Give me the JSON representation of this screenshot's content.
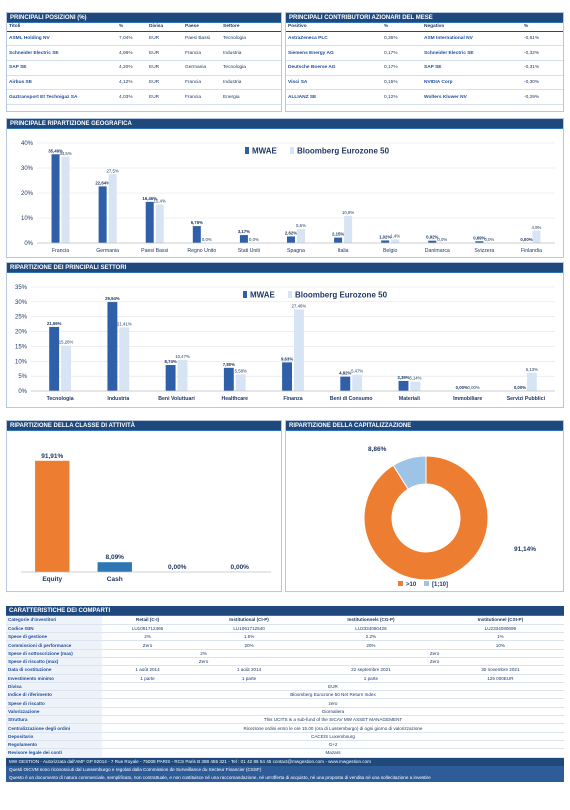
{
  "positions": {
    "title": "PRINCIPALI POSIZIONI (%)",
    "headers": [
      "Titoli",
      "%",
      "Divisa",
      "Paese",
      "Settore"
    ],
    "rows": [
      [
        "ASML Holding NV",
        "7,04%",
        "EUR",
        "Paesi Bassi",
        "Tecnologia"
      ],
      [
        "Schneider Electric SE",
        "4,96%",
        "EUR",
        "Francia",
        "Industria"
      ],
      [
        "SAP SE",
        "4,20%",
        "EUR",
        "Germania",
        "Tecnologia"
      ],
      [
        "Airbus SE",
        "4,12%",
        "EUR",
        "Francia",
        "Industria"
      ],
      [
        "Gaztransport Et Technigaz SA",
        "4,03%",
        "EUR",
        "Francia",
        "Energia"
      ]
    ]
  },
  "contributors": {
    "title": "PRINCIPALI CONTRIBUTORI AZIONARI  DEL MESE",
    "headers": [
      "Positivo",
      "%",
      "Negativo",
      "%"
    ],
    "rows": [
      [
        "AstraZeneca PLC",
        "0,36%",
        "ASM International NV",
        "-0,61%"
      ],
      [
        "Siemens Energy AG",
        "0,17%",
        "Schneider Electric SE",
        "-0,32%"
      ],
      [
        "Deutsche Boerse AG",
        "0,17%",
        "SAP SE",
        "-0,31%"
      ],
      [
        "Vinci SA",
        "0,15%",
        "NVIDIA Corp",
        "-0,30%"
      ],
      [
        "ALLIANZ SE",
        "0,12%",
        "Wolters Kluwer NV",
        "-0,29%"
      ]
    ]
  },
  "geo_title": "PRINCIPALE RIPARTIZIONE GEOGRAFICA",
  "sector_title": "RIPARTIZIONE DEI PRINCIPALI SETTORI",
  "asset_title": "RIPARTIZIONE DELLA CLASSE DI ATTIVITÀ",
  "cap_title": "RIPARTIZIONE DELLA CAPITALIZZAZIONE",
  "chart_data": [
    {
      "type": "bar",
      "categories": [
        "Francia",
        "Germania",
        "Paesi Bassi",
        "Regno Unito",
        "Stati Uniti",
        "Spagna",
        "Italia",
        "Belgio",
        "Danimarca",
        "Svizzera",
        "Finlandia"
      ],
      "series": [
        {
          "name": "MWAE",
          "values": [
            35.49,
            22.64,
            16.46,
            6.76,
            3.17,
            2.62,
            2.15,
            1.02,
            0.92,
            0.69,
            0.0
          ],
          "labels": [
            "35,49%",
            "22,64%",
            "16,46%",
            "6,76%",
            "3,17%",
            "2,62%",
            "2,15%",
            "1,02%",
            "0,92%",
            "0,69%",
            "0,00%"
          ]
        },
        {
          "name": "Bloomberg Eurozone 50",
          "values": [
            34.5,
            27.5,
            15.4,
            0.0,
            0.0,
            5.6,
            10.8,
            1.4,
            0.0,
            0.0,
            4.9
          ],
          "labels": [
            "34,5%",
            "27,5%",
            "15,4%",
            "0,0%",
            "0,0%",
            "5,6%",
            "10,8%",
            "1,4%",
            "0,0%",
            "0,0%",
            "4,9%"
          ]
        }
      ],
      "ylim": [
        0,
        40
      ],
      "yticks": [
        "0%",
        "10%",
        "20%",
        "30%",
        "40%"
      ],
      "legend": "top-right"
    },
    {
      "type": "bar",
      "categories": [
        "Tecnologia",
        "Industria",
        "Beni Voluttuari",
        "Healthcare",
        "Finanza",
        "Beni di Consumo",
        "Materiali",
        "Immobiliare",
        "Servizi Pubblici"
      ],
      "series": [
        {
          "name": "MWAE",
          "values": [
            21.56,
            29.94,
            8.74,
            7.8,
            9.63,
            4.82,
            3.39,
            0.0,
            0.0
          ],
          "labels": [
            "21,56%",
            "29,94%",
            "8,74%",
            "7,80%",
            "9,63%",
            "4,82%",
            "3,39%",
            "0,00%",
            "0,00%"
          ]
        },
        {
          "name": "Bloomberg Eurozone 50",
          "values": [
            15.26,
            21.41,
            10.47,
            5.58,
            27.46,
            5.47,
            3.14,
            0.0,
            6.13
          ],
          "labels": [
            "15,26%",
            "21,41%",
            "10,47%",
            "5,58%",
            "27,46%",
            "5,47%",
            "3,14%",
            "0,00%",
            "6,13%"
          ]
        }
      ],
      "ylim": [
        0,
        35
      ],
      "yticks": [
        "0%",
        "5%",
        "10%",
        "15%",
        "20%",
        "25%",
        "30%",
        "35%"
      ],
      "legend": "top-right"
    },
    {
      "type": "bar",
      "categories": [
        "Equity",
        "Cash",
        "",
        ""
      ],
      "values": [
        91.91,
        8.09,
        0.0,
        0.0
      ],
      "labels": [
        "91,91%",
        "8,09%",
        "0,00%",
        "0,00%"
      ],
      "colors": [
        "#ed7d31",
        "#2e75b6",
        "#2e75b6",
        "#2e75b6"
      ],
      "ylim": [
        0,
        100
      ]
    },
    {
      "type": "pie",
      "categories": [
        ">10",
        "[1;10]"
      ],
      "values": [
        91.14,
        8.86
      ],
      "labels": [
        "91,14%",
        "8,86%"
      ],
      "colors": [
        "#ed7d31",
        "#9dc3e6"
      ],
      "legend": "bottom"
    }
  ],
  "colors": {
    "mwae": "#2e5fa8",
    "bench": "#d6e4f4",
    "header": "#1f497d"
  },
  "comparti": {
    "title": "CARATTERISTICHE DEI COMPARTI",
    "labels": [
      "Categorie d'investitori",
      "Codice ISIN",
      "Spese di gestione",
      "Commissioni di performance",
      "Spese di sottoscrizione (max)",
      "Spese di riscatto (max)",
      "Data di costituzione",
      "Investimento minimo",
      "Divisa",
      "Indice di riferimento",
      "Spese di riscatto",
      "Valorizzazione",
      "Struttura",
      "Centralizzazione degli ordini",
      "Depositario",
      "Regolamento",
      "Revisore legale dei conti"
    ],
    "classes": [
      "Retail (C-I)",
      "Institutional (CI-P)",
      "Institutionnels (CG-P)",
      "Institutionnel (CSI-P)"
    ],
    "isin": [
      "LU1061712466",
      "LU1061712540",
      "LU2334080426",
      "LU2334080699"
    ],
    "mgmt": [
      "2%",
      "1.5%",
      "2.2%",
      "1%"
    ],
    "perf": [
      "Zero",
      "20%",
      "20%",
      "10%"
    ],
    "subs": [
      "2%",
      "Zero"
    ],
    "rach": [
      "Zero",
      "Zero"
    ],
    "dates": [
      "1 août 2014",
      "1 août 2014",
      "22 septembre 2021",
      "30 novembre 2021"
    ],
    "mins": [
      "1 parte",
      "1 parte",
      "1 parte",
      "125 000EUR"
    ],
    "common": [
      "EUR",
      "Bloomberg Eurozone 50 Net Return Index",
      "zero",
      "Giornaliera",
      "This UCITS is a sub-fund of the SICAV MW ASSET MANAGEMENT",
      "Ricezione ordini entro le ore 15.00 (ora di Lussemburgo) di ogni giorno di valorizzazione",
      "CACEIS Luxembourg",
      "G+2",
      "Mazars"
    ]
  },
  "footer": {
    "line1": "MW GESTION - Autorizzata dall'AMF GP 92014 - 7 Rue Royale - 75008 PARIS - RCS Paris B 388 455 321 - Tel : 01 42 86 54 45 contact@mwgestion.com - www.mwgestion.com",
    "line2": "Questi OICVM sono riconosciuti dal Lussemburgo e regolati dalla Commission de Surveillance du Secteur Financier (CSSF)",
    "line3": "Questo è un documento di natura commerciale, semplificato, non contrattuale, e non costituisce né una raccomandazione, né un'offerta di acquisto, né una proposta di vendita né una sollecitazione a investire"
  }
}
